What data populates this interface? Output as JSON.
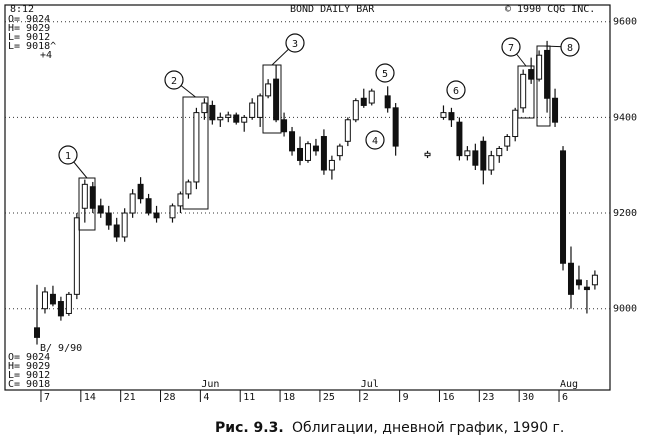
{
  "chart_data": {
    "type": "candlestick",
    "title": "BOND DAILY BAR",
    "categories": [
      null,
      "7",
      null,
      null,
      null,
      null,
      "14",
      null,
      null,
      null,
      null,
      "21",
      null,
      null,
      null,
      null,
      "28",
      null,
      null,
      null,
      null,
      "4",
      null,
      null,
      null,
      null,
      "11",
      null,
      null,
      null,
      null,
      "18",
      null,
      null,
      null,
      null,
      "25",
      null,
      null,
      null,
      null,
      "2",
      null,
      null,
      null,
      null,
      "9",
      null,
      null,
      null,
      null,
      "16",
      null,
      null,
      null,
      null,
      "23",
      null,
      null,
      null,
      null,
      "30",
      null,
      null,
      null,
      null,
      "6",
      null,
      null,
      null,
      null
    ],
    "open": [
      8960,
      9000,
      9030,
      9015,
      8990,
      9030,
      9210,
      9255,
      9215,
      9200,
      9175,
      9150,
      9200,
      9260,
      9230,
      9200,
      null,
      9190,
      9215,
      9240,
      9265,
      9410,
      9425,
      9395,
      9400,
      9405,
      9390,
      9400,
      9400,
      9445,
      9480,
      9395,
      9370,
      9335,
      9310,
      9340,
      9360,
      9290,
      9320,
      9350,
      9395,
      9440,
      9430,
      null,
      9445,
      9420,
      null,
      null,
      null,
      9320,
      null,
      9400,
      9410,
      9390,
      9320,
      9330,
      9350,
      9290,
      9320,
      9340,
      9360,
      9420,
      9500,
      9480,
      9540,
      9440,
      9330,
      9095,
      9060,
      9045,
      9050
    ],
    "high": [
      9050,
      9045,
      9048,
      9025,
      9035,
      9200,
      9270,
      9265,
      9230,
      9215,
      9190,
      9210,
      9250,
      9275,
      9240,
      9215,
      null,
      9220,
      9245,
      9270,
      9420,
      9440,
      9435,
      9410,
      9412,
      9410,
      9405,
      9440,
      9450,
      9480,
      9510,
      9410,
      9380,
      9360,
      9350,
      9355,
      9375,
      9320,
      9345,
      9400,
      9440,
      9460,
      9460,
      null,
      9465,
      9430,
      null,
      null,
      null,
      9330,
      null,
      9425,
      9420,
      9400,
      9340,
      9345,
      9360,
      9330,
      9340,
      9365,
      9420,
      9500,
      9525,
      9540,
      9560,
      9460,
      9340,
      9130,
      9090,
      9060,
      9080
    ],
    "low": [
      8925,
      8990,
      9005,
      8975,
      8985,
      9020,
      9180,
      9200,
      9190,
      9165,
      9140,
      9140,
      9190,
      9220,
      9195,
      9180,
      null,
      9180,
      9200,
      9230,
      9250,
      9395,
      9385,
      9380,
      9390,
      9385,
      9370,
      9395,
      9380,
      9440,
      9390,
      9360,
      9320,
      9300,
      9305,
      9320,
      9280,
      9270,
      9310,
      9340,
      9390,
      9420,
      9425,
      null,
      9410,
      9320,
      null,
      null,
      null,
      9315,
      null,
      9395,
      9380,
      9310,
      9310,
      9290,
      9260,
      9280,
      9305,
      9330,
      9350,
      9410,
      9470,
      9475,
      9410,
      9380,
      9080,
      9000,
      9040,
      8990,
      9040
    ],
    "close": [
      8940,
      9035,
      9010,
      8985,
      9030,
      9190,
      9260,
      9210,
      9200,
      9175,
      9150,
      9200,
      9240,
      9230,
      9200,
      9190,
      null,
      9215,
      9240,
      9265,
      9410,
      9430,
      9395,
      9400,
      9405,
      9390,
      9400,
      9430,
      9445,
      9470,
      9395,
      9370,
      9330,
      9310,
      9345,
      9330,
      9290,
      9310,
      9340,
      9395,
      9435,
      9425,
      9455,
      null,
      9420,
      9340,
      null,
      null,
      null,
      9325,
      null,
      9410,
      9395,
      9320,
      9330,
      9300,
      9290,
      9320,
      9335,
      9360,
      9415,
      9490,
      9480,
      9530,
      9440,
      9390,
      9095,
      9030,
      9050,
      9040,
      9070
    ],
    "months": [
      "Jun",
      "Jul",
      "Aug"
    ],
    "ylim": [
      8830,
      9635
    ],
    "yticks": [
      9000,
      9200,
      9400,
      9600
    ],
    "grid": true,
    "annotations": [
      "1",
      "2",
      "3",
      "4",
      "5",
      "6",
      "7",
      "8"
    ]
  },
  "header": {
    "time": "8:12",
    "copyright": "© 1990 CQG INC.",
    "quote": [
      "O= 9024",
      "H= 9029",
      "L= 9012",
      "L= 9018^",
      "+4"
    ]
  },
  "footer_quote": [
    "B/ 9/90",
    "O= 9024",
    "H= 9029",
    "L= 9012",
    "C= 9018"
  ],
  "caption": {
    "label": "Рис. 9.3.",
    "text": "Облигации, дневной график, 1990 г."
  }
}
